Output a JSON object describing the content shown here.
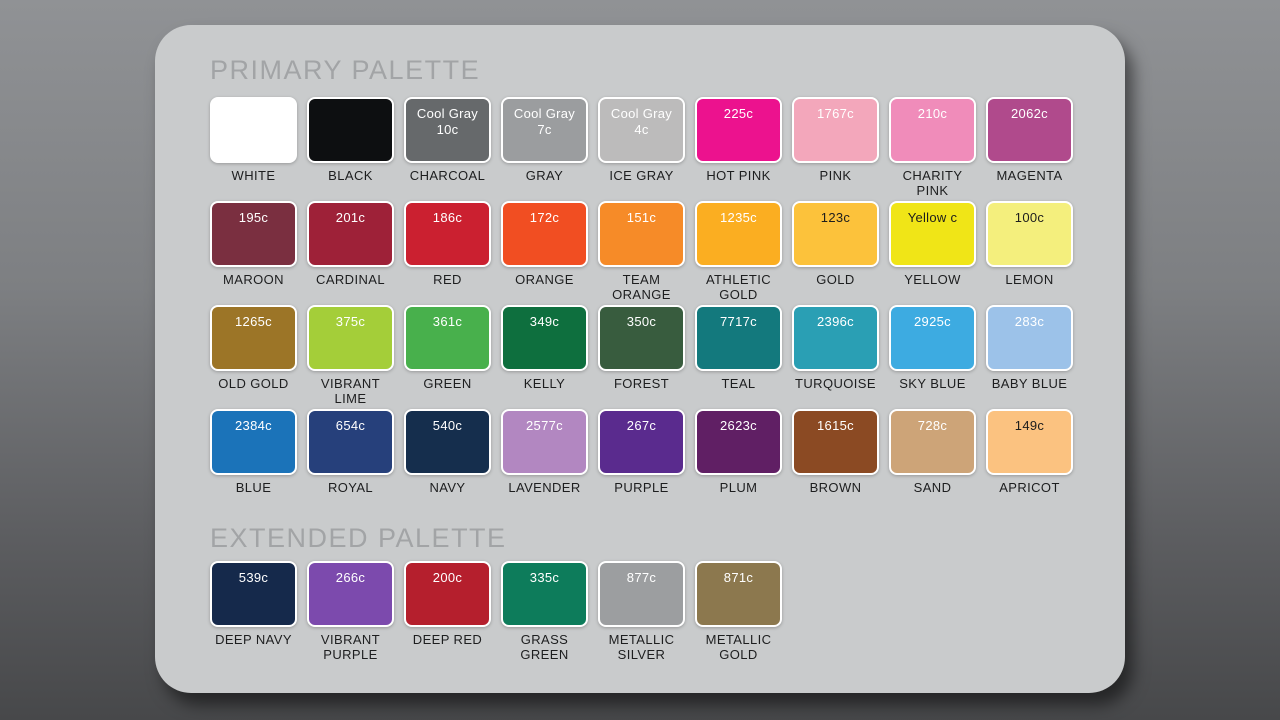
{
  "colors": {
    "background_top": "#909295",
    "background_bottom": "#47484a",
    "card_background": "#c9cbcc",
    "title_text": "#a2a4a6",
    "label_text": "#1d1e1f",
    "swatch_border": "#ffffff"
  },
  "sections": [
    {
      "title": "PRIMARY PALETTE",
      "columns": 9,
      "swatches": [
        {
          "name": "WHITE",
          "code_lines": [],
          "color": "#ffffff",
          "code_color": "#ffffff"
        },
        {
          "name": "BLACK",
          "code_lines": [],
          "color": "#0d0f11",
          "code_color": "#ffffff"
        },
        {
          "name": "CHARCOAL",
          "code_lines": [
            "Cool Gray",
            "10c"
          ],
          "color": "#66696b",
          "code_color": "#ffffff"
        },
        {
          "name": "GRAY",
          "code_lines": [
            "Cool Gray",
            "7c"
          ],
          "color": "#9b9d9f",
          "code_color": "#ffffff"
        },
        {
          "name": "ICE GRAY",
          "code_lines": [
            "Cool Gray",
            "4c"
          ],
          "color": "#bcbbbb",
          "code_color": "#ffffff"
        },
        {
          "name": "HOT PINK",
          "code_lines": [
            "225c"
          ],
          "color": "#ec128e",
          "code_color": "#ffffff"
        },
        {
          "name": "PINK",
          "code_lines": [
            "1767c"
          ],
          "color": "#f3a7bb",
          "code_color": "#ffffff"
        },
        {
          "name": "CHARITY PINK",
          "code_lines": [
            "210c"
          ],
          "color": "#f08cba",
          "code_color": "#ffffff"
        },
        {
          "name": "MAGENTA",
          "code_lines": [
            "2062c"
          ],
          "color": "#b04a8c",
          "code_color": "#ffffff"
        },
        {
          "name": "MAROON",
          "code_lines": [
            "195c"
          ],
          "color": "#7a2f40",
          "code_color": "#ffffff"
        },
        {
          "name": "CARDINAL",
          "code_lines": [
            "201c"
          ],
          "color": "#9e2138",
          "code_color": "#ffffff"
        },
        {
          "name": "RED",
          "code_lines": [
            "186c"
          ],
          "color": "#cb2030",
          "code_color": "#ffffff"
        },
        {
          "name": "ORANGE",
          "code_lines": [
            "172c"
          ],
          "color": "#f14e22",
          "code_color": "#ffffff"
        },
        {
          "name": "TEAM ORANGE",
          "code_lines": [
            "151c"
          ],
          "color": "#f68b28",
          "code_color": "#ffffff"
        },
        {
          "name": "ATHLETIC GOLD",
          "code_lines": [
            "1235c"
          ],
          "color": "#fbae21",
          "code_color": "#ffffff"
        },
        {
          "name": "GOLD",
          "code_lines": [
            "123c"
          ],
          "color": "#fcc23b",
          "code_color": "#1d1d1d"
        },
        {
          "name": "YELLOW",
          "code_lines": [
            "Yellow c"
          ],
          "color": "#f0e517",
          "code_color": "#1d1d1d"
        },
        {
          "name": "LEMON",
          "code_lines": [
            "100c"
          ],
          "color": "#f4ef7d",
          "code_color": "#1d1d1d"
        },
        {
          "name": "OLD GOLD",
          "code_lines": [
            "1265c"
          ],
          "color": "#9c7527",
          "code_color": "#ffffff"
        },
        {
          "name": "VIBRANT LIME",
          "code_lines": [
            "375c"
          ],
          "color": "#a4ce39",
          "code_color": "#ffffff"
        },
        {
          "name": "GREEN",
          "code_lines": [
            "361c"
          ],
          "color": "#48b04c",
          "code_color": "#ffffff"
        },
        {
          "name": "KELLY",
          "code_lines": [
            "349c"
          ],
          "color": "#0e6f3e",
          "code_color": "#ffffff"
        },
        {
          "name": "FOREST",
          "code_lines": [
            "350c"
          ],
          "color": "#385c3e",
          "code_color": "#ffffff"
        },
        {
          "name": "TEAL",
          "code_lines": [
            "7717c"
          ],
          "color": "#13797d",
          "code_color": "#ffffff"
        },
        {
          "name": "TURQUOISE",
          "code_lines": [
            "2396c"
          ],
          "color": "#2a9fb4",
          "code_color": "#ffffff"
        },
        {
          "name": "SKY BLUE",
          "code_lines": [
            "2925c"
          ],
          "color": "#3dabe1",
          "code_color": "#ffffff"
        },
        {
          "name": "BABY BLUE",
          "code_lines": [
            "283c"
          ],
          "color": "#9cc2e9",
          "code_color": "#ffffff"
        },
        {
          "name": "BLUE",
          "code_lines": [
            "2384c"
          ],
          "color": "#1b73b9",
          "code_color": "#ffffff"
        },
        {
          "name": "ROYAL",
          "code_lines": [
            "654c"
          ],
          "color": "#26407b",
          "code_color": "#ffffff"
        },
        {
          "name": "NAVY",
          "code_lines": [
            "540c"
          ],
          "color": "#152e4d",
          "code_color": "#ffffff"
        },
        {
          "name": "LAVENDER",
          "code_lines": [
            "2577c"
          ],
          "color": "#b287c1",
          "code_color": "#ffffff"
        },
        {
          "name": "PURPLE",
          "code_lines": [
            "267c"
          ],
          "color": "#5a2b8e",
          "code_color": "#ffffff"
        },
        {
          "name": "PLUM",
          "code_lines": [
            "2623c"
          ],
          "color": "#601f64",
          "code_color": "#ffffff"
        },
        {
          "name": "BROWN",
          "code_lines": [
            "1615c"
          ],
          "color": "#8b4a23",
          "code_color": "#ffffff"
        },
        {
          "name": "SAND",
          "code_lines": [
            "728c"
          ],
          "color": "#cda478",
          "code_color": "#ffffff"
        },
        {
          "name": "APRICOT",
          "code_lines": [
            "149c"
          ],
          "color": "#fbc280",
          "code_color": "#1d1d1d"
        }
      ]
    },
    {
      "title": "EXTENDED PALETTE",
      "columns": 6,
      "swatches": [
        {
          "name": "DEEP NAVY",
          "code_lines": [
            "539c"
          ],
          "color": "#15294b",
          "code_color": "#ffffff"
        },
        {
          "name": "VIBRANT PURPLE",
          "code_lines": [
            "266c"
          ],
          "color": "#7c4aad",
          "code_color": "#ffffff"
        },
        {
          "name": "DEEP RED",
          "code_lines": [
            "200c"
          ],
          "color": "#b51f2d",
          "code_color": "#ffffff"
        },
        {
          "name": "GRASS GREEN",
          "code_lines": [
            "335c"
          ],
          "color": "#0d7c5b",
          "code_color": "#ffffff"
        },
        {
          "name": "METALLIC SILVER",
          "code_lines": [
            "877c"
          ],
          "color": "#9c9ea0",
          "code_color": "#ffffff"
        },
        {
          "name": "METALLIC GOLD",
          "code_lines": [
            "871c"
          ],
          "color": "#8c784e",
          "code_color": "#ffffff"
        }
      ]
    }
  ]
}
